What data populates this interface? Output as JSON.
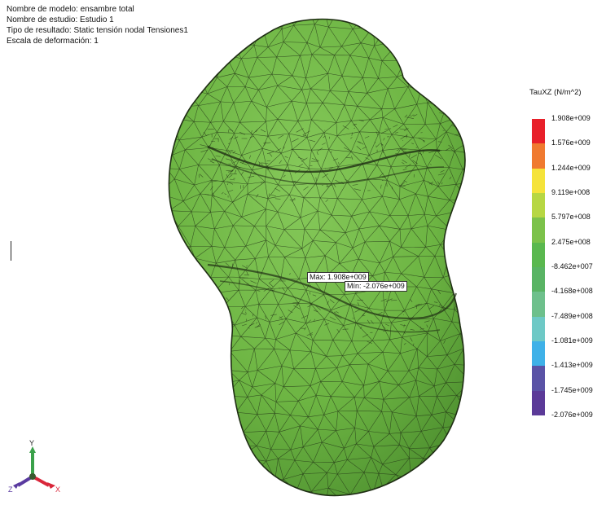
{
  "info": {
    "model_name": "Nombre de modelo: ensambre total",
    "study_name": "Nombre de estudio: Estudio 1",
    "result_type": "Tipo de resultado: Static tensión nodal Tensiones1",
    "deformation_scale": "Escala de deformación: 1"
  },
  "legend": {
    "title": "TauXZ (N/m^2)",
    "labels": [
      "1.908e+009",
      "1.576e+009",
      "1.244e+009",
      "9.119e+008",
      "5.797e+008",
      "2.475e+008",
      "-8.462e+007",
      "-4.168e+008",
      "-7.489e+008",
      "-1.081e+009",
      "-1.413e+009",
      "-1.745e+009",
      "-2.076e+009"
    ],
    "colors": [
      "#e8202a",
      "#f07a30",
      "#f5e33a",
      "#b7d743",
      "#7cc24a",
      "#5ab84f",
      "#59b464",
      "#6ec08c",
      "#6ec9c6",
      "#3fb1e8",
      "#5a53a6",
      "#5b3a98"
    ]
  },
  "probes": {
    "max": "Máx: 1.908e+009",
    "min": "Mín: -2.076e+009"
  },
  "triad": {
    "x_label": "X",
    "y_label": "Y",
    "z_label": "Z",
    "x_color": "#d9263a",
    "y_color": "#3aa14a",
    "z_color": "#5a3aa0"
  },
  "model": {
    "fill_color": "#6db543",
    "mesh_color": "#1f2e14"
  }
}
